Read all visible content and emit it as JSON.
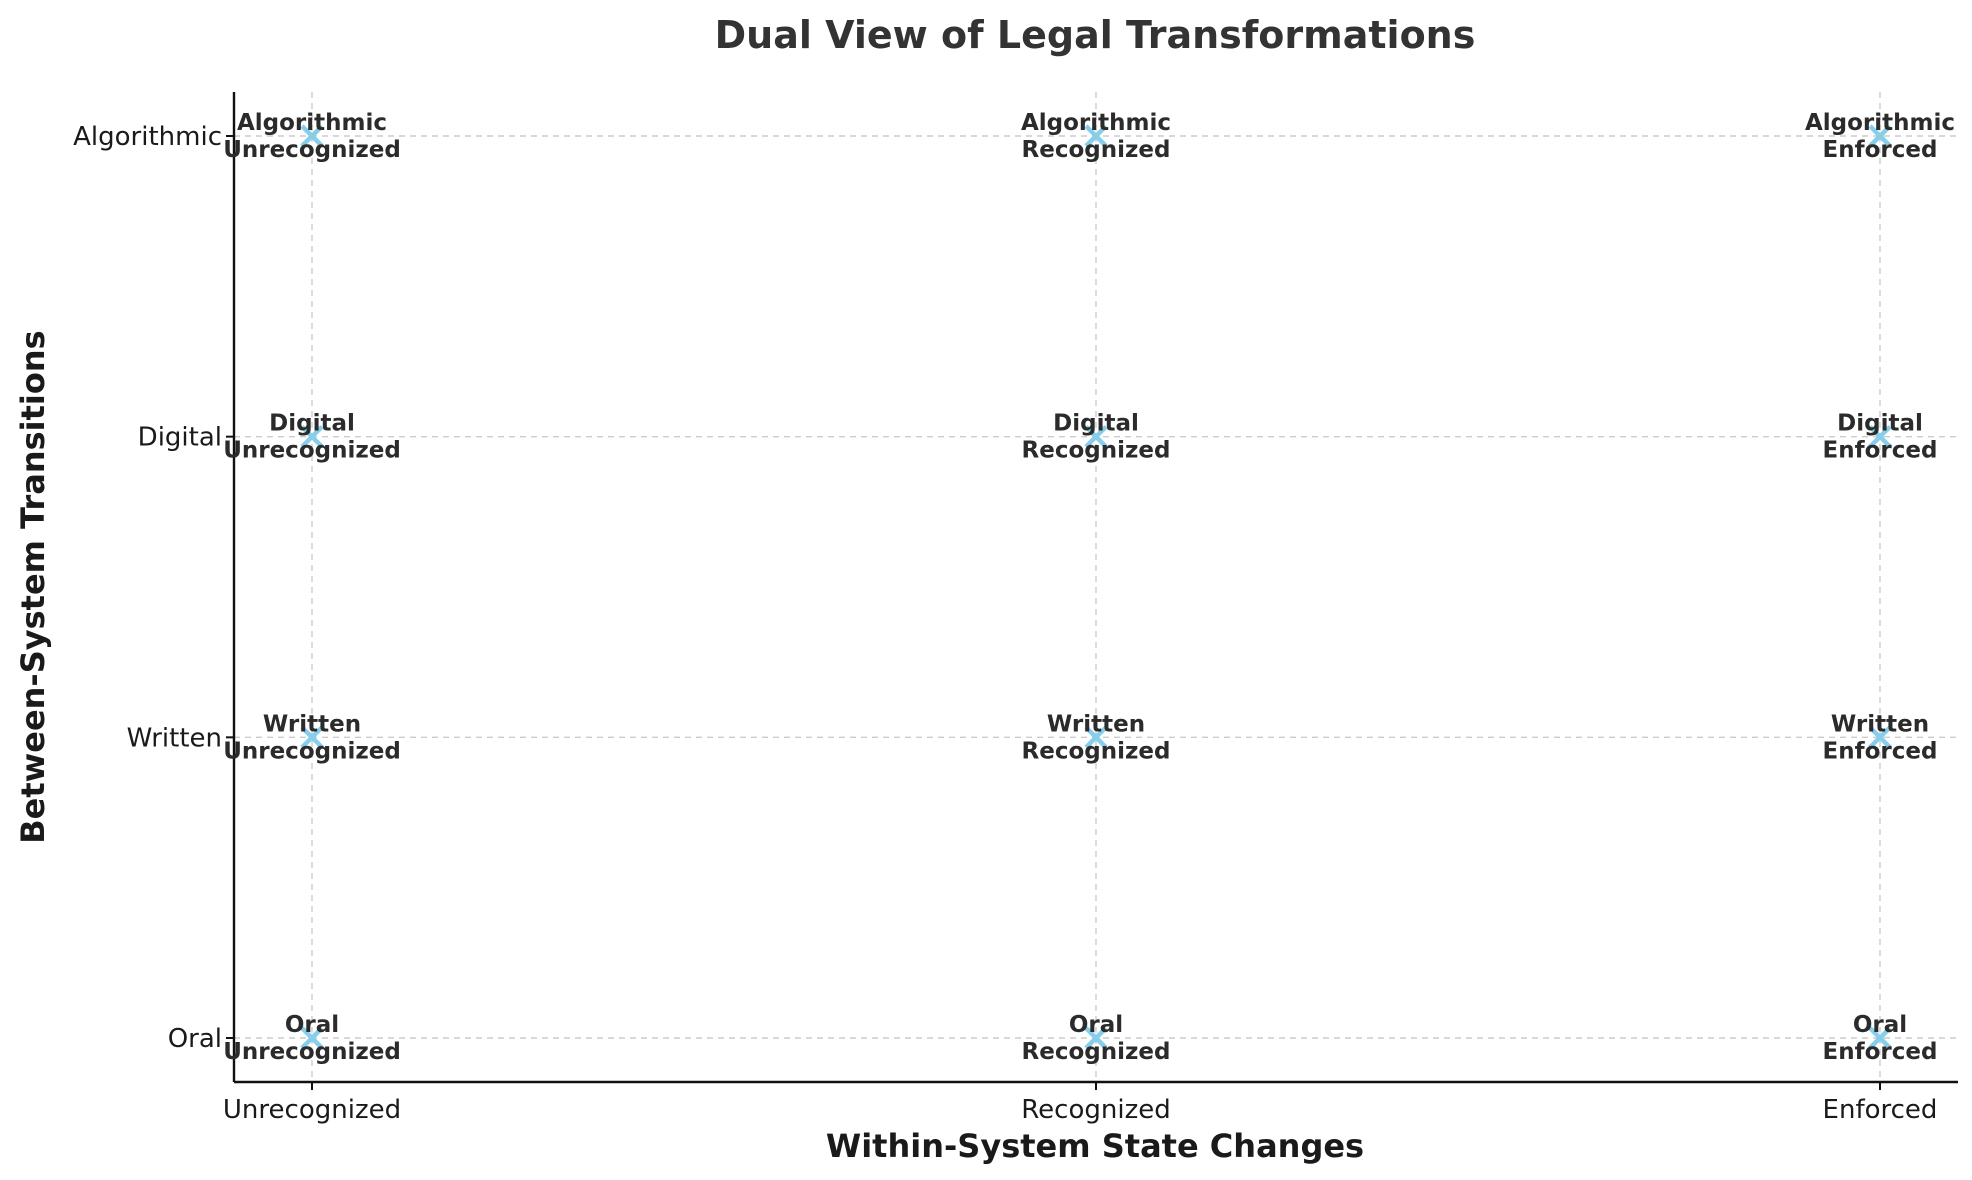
{
  "chart_data": {
    "type": "scatter",
    "title": "Dual View of Legal Transformations",
    "xlabel": "Within-System State Changes",
    "ylabel": "Between-System Transitions",
    "x_categories": [
      "Unrecognized",
      "Recognized",
      "Enforced"
    ],
    "y_categories": [
      "Oral",
      "Written",
      "Digital",
      "Algorithmic"
    ],
    "marker": "x",
    "marker_color": "#87ceeb",
    "grid": true,
    "points": [
      {
        "x": "Unrecognized",
        "y": "Oral",
        "label": [
          "Oral",
          "Unrecognized"
        ]
      },
      {
        "x": "Recognized",
        "y": "Oral",
        "label": [
          "Oral",
          "Recognized"
        ]
      },
      {
        "x": "Enforced",
        "y": "Oral",
        "label": [
          "Oral",
          "Enforced"
        ]
      },
      {
        "x": "Unrecognized",
        "y": "Written",
        "label": [
          "Written",
          "Unrecognized"
        ]
      },
      {
        "x": "Recognized",
        "y": "Written",
        "label": [
          "Written",
          "Recognized"
        ]
      },
      {
        "x": "Enforced",
        "y": "Written",
        "label": [
          "Written",
          "Enforced"
        ]
      },
      {
        "x": "Unrecognized",
        "y": "Digital",
        "label": [
          "Digital",
          "Unrecognized"
        ]
      },
      {
        "x": "Recognized",
        "y": "Digital",
        "label": [
          "Digital",
          "Recognized"
        ]
      },
      {
        "x": "Enforced",
        "y": "Digital",
        "label": [
          "Digital",
          "Enforced"
        ]
      },
      {
        "x": "Unrecognized",
        "y": "Algorithmic",
        "label": [
          "Algorithmic",
          "Unrecognized"
        ]
      },
      {
        "x": "Recognized",
        "y": "Algorithmic",
        "label": [
          "Algorithmic",
          "Recognized"
        ]
      },
      {
        "x": "Enforced",
        "y": "Algorithmic",
        "label": [
          "Algorithmic",
          "Enforced"
        ]
      }
    ]
  }
}
